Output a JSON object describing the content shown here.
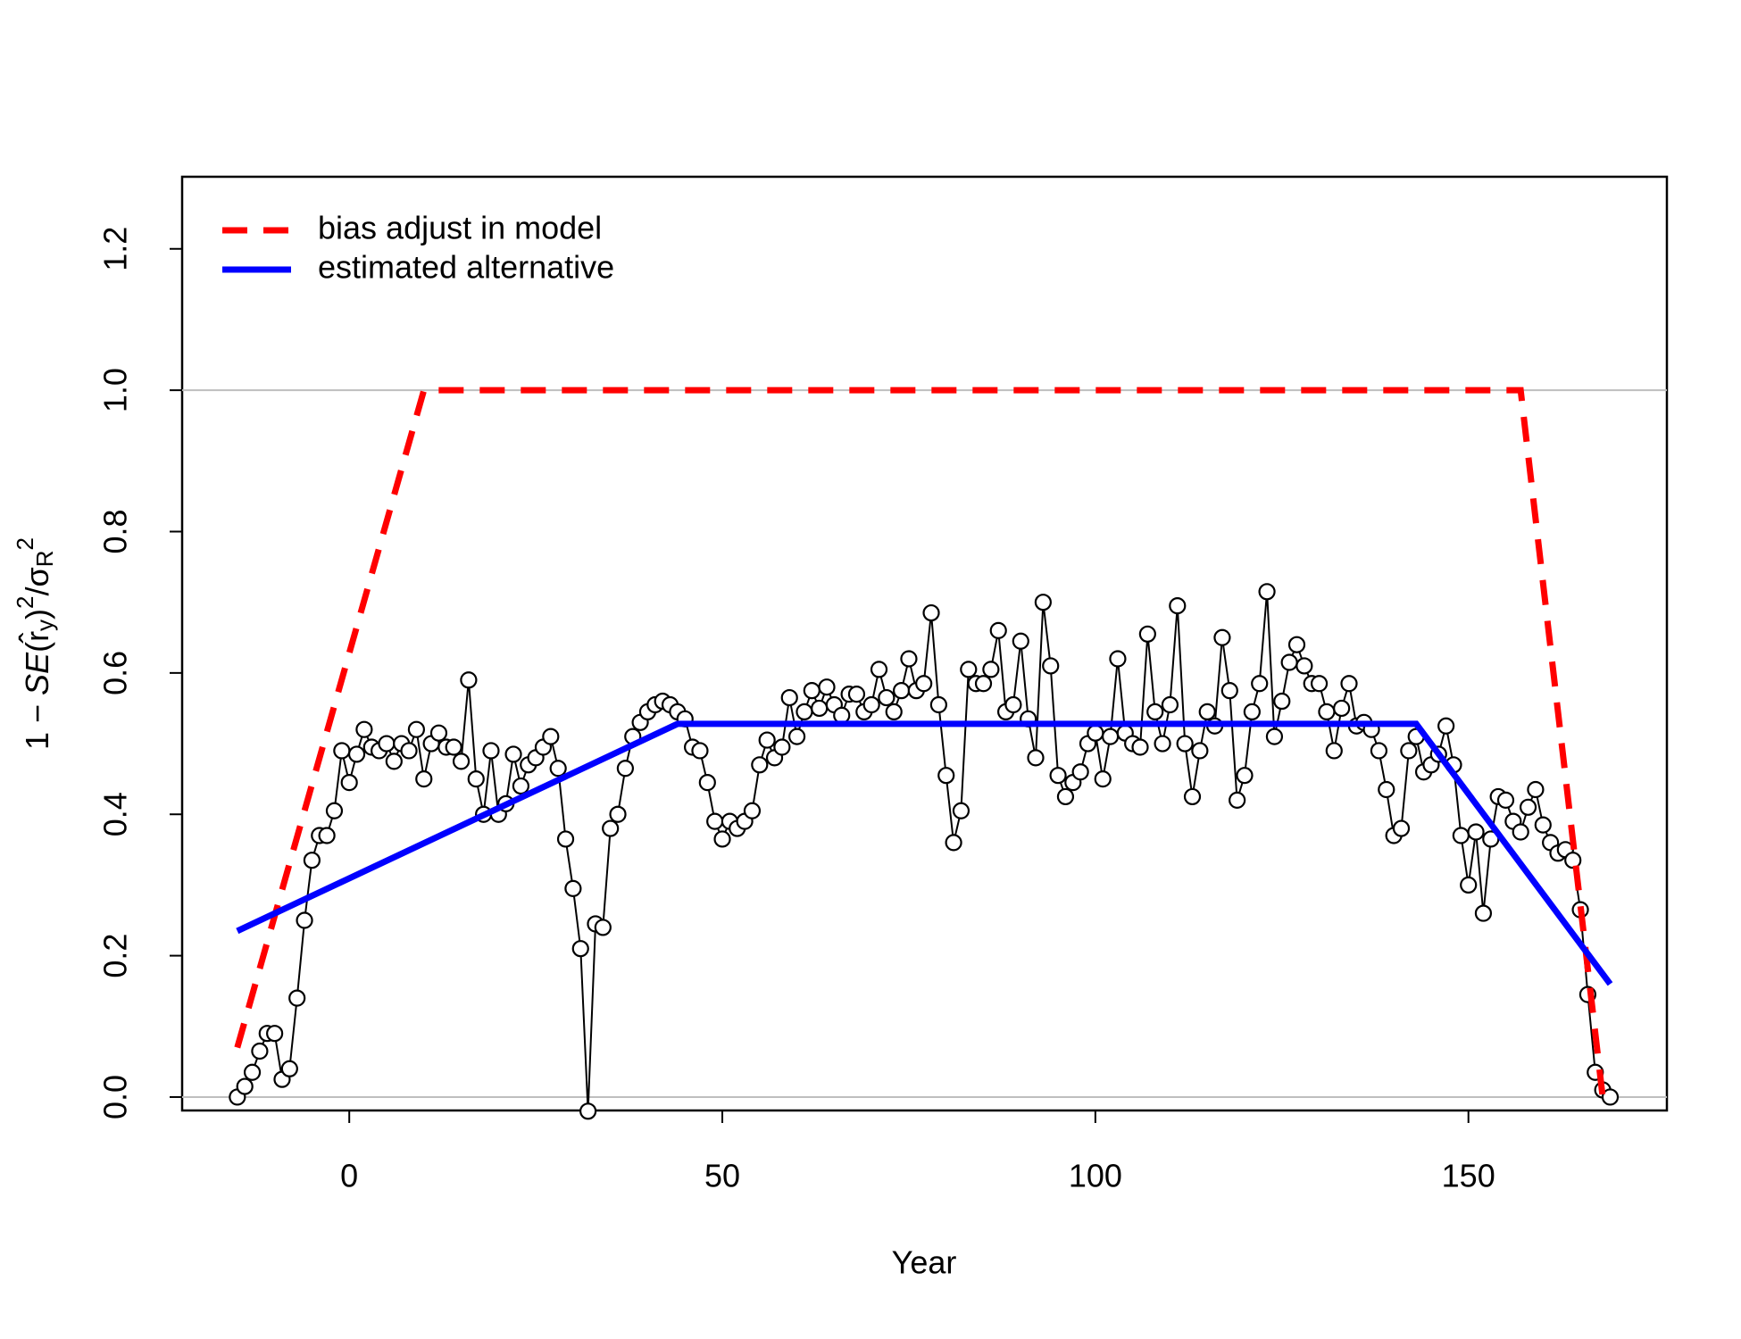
{
  "chart_data": {
    "type": "line",
    "xlabel": "Year",
    "ylabel": [
      "1 − ",
      "SE",
      "(r̂",
      "y",
      ")",
      "2",
      "/σ",
      "R",
      "2"
    ],
    "xlim": [
      -22.4,
      176.6
    ],
    "ylim": [
      -0.019,
      1.302
    ],
    "xticks": [
      0,
      50,
      100,
      150
    ],
    "yticks": [
      {
        "value": 0,
        "label": "0.0"
      },
      0.2,
      0.4,
      0.6,
      0.8,
      {
        "value": 1,
        "label": "1.0"
      },
      1.2
    ],
    "reference_lines": [
      0,
      1
    ],
    "legend": "topleft",
    "series": [
      {
        "color": "#000000",
        "style": "points",
        "x": [
          -15,
          -14,
          -13,
          -12,
          -11,
          -10,
          -9,
          -8,
          -7,
          -6,
          -5,
          -4,
          -3,
          -2,
          -1,
          0,
          1,
          2,
          3,
          4,
          5,
          6,
          7,
          8,
          9,
          10,
          11,
          12,
          13,
          14,
          15,
          16,
          17,
          18,
          19,
          20,
          21,
          22,
          23,
          24,
          25,
          26,
          27,
          28,
          29,
          30,
          31,
          32,
          33,
          34,
          35,
          36,
          37,
          38,
          39,
          40,
          41,
          42,
          43,
          44,
          45,
          46,
          47,
          48,
          49,
          50,
          51,
          52,
          53,
          54,
          55,
          56,
          57,
          58,
          59,
          60,
          61,
          62,
          63,
          64,
          65,
          66,
          67,
          68,
          69,
          70,
          71,
          72,
          73,
          74,
          75,
          76,
          77,
          78,
          79,
          80,
          81,
          82,
          83,
          84,
          85,
          86,
          87,
          88,
          89,
          90,
          91,
          92,
          93,
          94,
          95,
          96,
          97,
          98,
          99,
          100,
          101,
          102,
          103,
          104,
          105,
          106,
          107,
          108,
          109,
          110,
          111,
          112,
          113,
          114,
          115,
          116,
          117,
          118,
          119,
          120,
          121,
          122,
          123,
          124,
          125,
          126,
          127,
          128,
          129,
          130,
          131,
          132,
          133,
          134,
          135,
          136,
          137,
          138,
          139,
          140,
          141,
          142,
          143,
          144,
          145,
          146,
          147,
          148,
          149,
          150,
          151,
          152,
          153,
          154,
          155,
          156,
          157,
          158,
          159,
          160,
          161,
          162,
          163,
          164,
          165,
          166,
          167,
          168,
          169
        ],
        "values": [
          0.0,
          0.015,
          0.035,
          0.065,
          0.09,
          0.09,
          0.025,
          0.04,
          0.14,
          0.25,
          0.335,
          0.37,
          0.37,
          0.405,
          0.49,
          0.445,
          0.485,
          0.52,
          0.495,
          0.49,
          0.5,
          0.475,
          0.5,
          0.49,
          0.52,
          0.45,
          0.5,
          0.515,
          0.495,
          0.495,
          0.475,
          0.59,
          0.45,
          0.4,
          0.49,
          0.4,
          0.415,
          0.485,
          0.44,
          0.47,
          0.48,
          0.495,
          0.51,
          0.465,
          0.365,
          0.295,
          0.21,
          -0.02,
          0.245,
          0.24,
          0.38,
          0.4,
          0.465,
          0.51,
          0.53,
          0.545,
          0.555,
          0.56,
          0.555,
          0.545,
          0.535,
          0.495,
          0.49,
          0.445,
          0.39,
          0.365,
          0.39,
          0.38,
          0.39,
          0.405,
          0.47,
          0.505,
          0.48,
          0.495,
          0.565,
          0.51,
          0.545,
          0.575,
          0.55,
          0.58,
          0.555,
          0.54,
          0.57,
          0.57,
          0.545,
          0.555,
          0.605,
          0.565,
          0.545,
          0.575,
          0.62,
          0.575,
          0.585,
          0.685,
          0.555,
          0.455,
          0.36,
          0.405,
          0.605,
          0.585,
          0.585,
          0.605,
          0.66,
          0.545,
          0.555,
          0.645,
          0.535,
          0.48,
          0.7,
          0.61,
          0.455,
          0.425,
          0.445,
          0.46,
          0.5,
          0.515,
          0.45,
          0.51,
          0.62,
          0.515,
          0.5,
          0.495,
          0.655,
          0.545,
          0.5,
          0.555,
          0.695,
          0.5,
          0.425,
          0.49,
          0.545,
          0.525,
          0.65,
          0.575,
          0.42,
          0.455,
          0.545,
          0.585,
          0.715,
          0.51,
          0.56,
          0.615,
          0.64,
          0.61,
          0.585,
          0.585,
          0.545,
          0.49,
          0.55,
          0.585,
          0.525,
          0.53,
          0.52,
          0.49,
          0.435,
          0.37,
          0.38,
          0.49,
          0.51,
          0.46,
          0.47,
          0.485,
          0.525,
          0.47,
          0.37,
          0.3,
          0.375,
          0.26,
          0.365,
          0.425,
          0.42,
          0.39,
          0.375,
          0.41,
          0.435,
          0.385,
          0.36,
          0.345,
          0.35,
          0.335,
          0.265,
          0.145,
          0.035,
          0.01,
          0.0
        ]
      },
      {
        "name": "bias adjust in model",
        "color": "#ff0000",
        "style": "dashed",
        "x": [
          -15,
          10,
          157,
          168
        ],
        "values": [
          0.07,
          1,
          1,
          0
        ]
      },
      {
        "name": "estimated alternative",
        "color": "#0000ff",
        "style": "solid",
        "x": [
          -15,
          44,
          143,
          169
        ],
        "values": [
          0.235,
          0.528,
          0.528,
          0.16
        ]
      }
    ]
  }
}
